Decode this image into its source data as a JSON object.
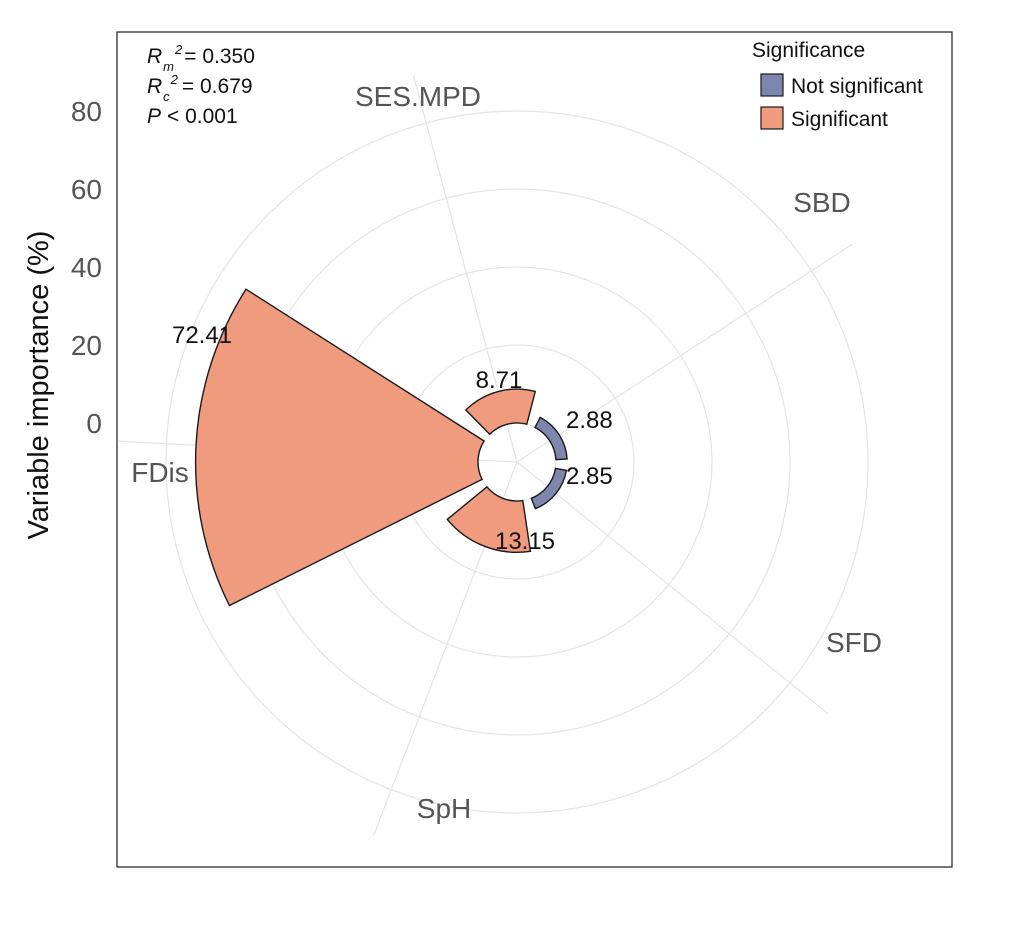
{
  "chart_data": {
    "type": "polar-bar",
    "ylabel": "Variable importance (%)",
    "yticks": [
      "0",
      "20",
      "40",
      "60",
      "80"
    ],
    "ylim": [
      -10,
      92
    ],
    "gridlines": [
      0,
      20,
      40,
      60,
      80
    ],
    "categories": [
      "SES.MPD",
      "SBD",
      "SFD",
      "SpH",
      "FDis"
    ],
    "values": [
      8.71,
      2.88,
      2.85,
      13.15,
      72.41
    ],
    "value_labels": [
      "8.71",
      "2.88",
      "2.85",
      "13.15",
      "72.41"
    ],
    "significance": [
      "Significant",
      "Not significant",
      "Not significant",
      "Significant",
      "Significant"
    ],
    "stats": {
      "rm_prefix": "R",
      "rm_sub": "m",
      "rm_sup": "2",
      "rm_value": "= 0.350",
      "rc_prefix": "R",
      "rc_sub": "c",
      "rc_sup": "2",
      "rc_value": "= 0.679",
      "p_prefix": "P",
      "p_value": "< 0.001"
    },
    "legend": {
      "title": "Significance",
      "position": "top-right",
      "items": [
        {
          "label": "Not significant",
          "color": "#7d86ad"
        },
        {
          "label": "Significant",
          "color": "#f09a7e"
        }
      ]
    }
  }
}
